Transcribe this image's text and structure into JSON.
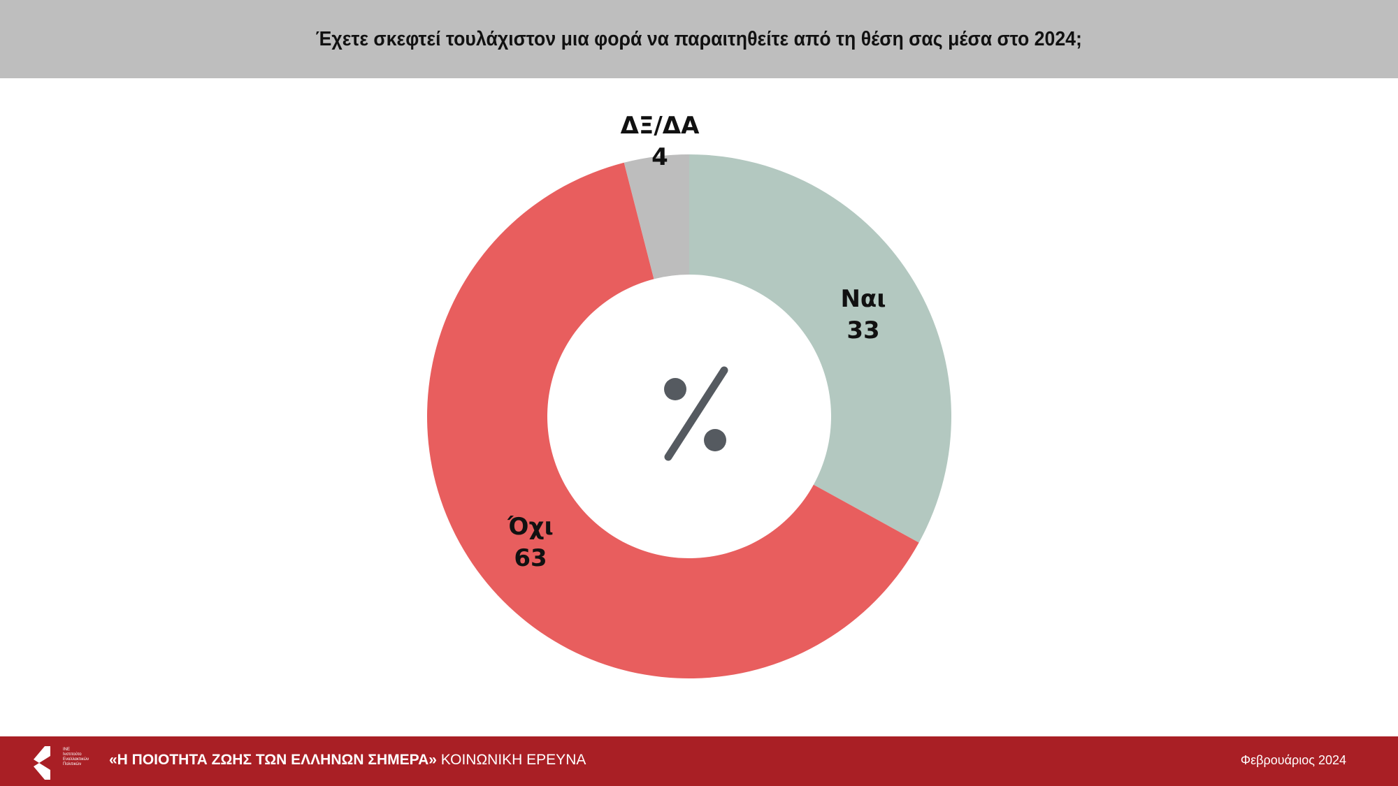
{
  "header": {
    "title": "Έχετε σκεφτεί τουλάχιστον μια φορά να παραιτηθείτε από τη θέση σας μέσα στο 2024;"
  },
  "chart_data": {
    "type": "pie",
    "subtype": "donut",
    "title": "Έχετε σκεφτεί τουλάχιστον μια φορά να παραιτηθείτε από τη θέση σας μέσα στο 2024;",
    "center_label": "%",
    "categories": [
      "Ναι",
      "Όχι",
      "ΔΞ/ΔΑ"
    ],
    "values": [
      33,
      63,
      4
    ],
    "colors": [
      "#b3c8c0",
      "#e85e5e",
      "#bdbdbd"
    ],
    "value_labels": [
      "33",
      "63",
      "4"
    ]
  },
  "footer": {
    "logo_text": [
      "ΙΝΕ",
      "Ινστιτούτο",
      "Εναλλακτικών",
      "Πολιτικών"
    ],
    "survey_title": "«Η ΠΟΙΟΤΗΤΑ ΖΩΗΣ ΤΩΝ ΕΛΛΗΝΩΝ ΣΗΜΕΡΑ»",
    "survey_type": "ΚΟΙΝΩΝΙΚΗ ΕΡΕΥΝΑ",
    "date": "Φεβρουάριος 2024"
  }
}
